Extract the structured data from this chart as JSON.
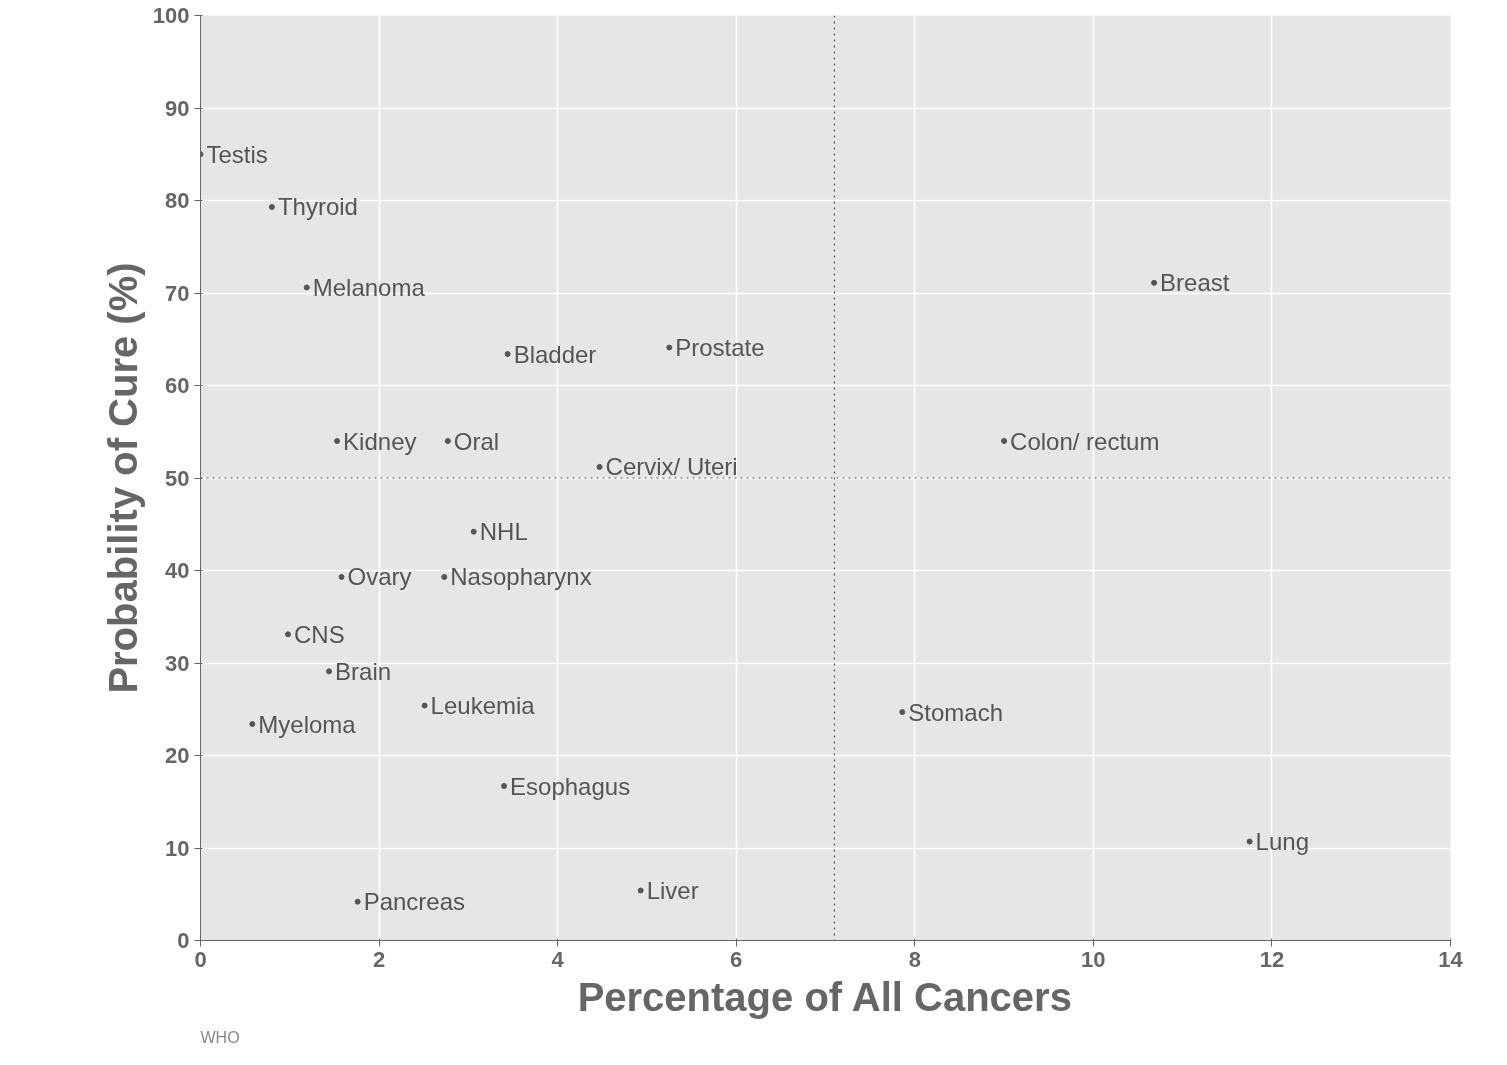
{
  "chart_data": {
    "type": "scatter",
    "marker": "circle",
    "color": "#555555",
    "xlabel": "Percentage of All Cancers",
    "ylabel": "Probability of Cure (%)",
    "xlim": [
      0,
      14
    ],
    "ylim": [
      0,
      100
    ],
    "xticks": [
      0,
      2,
      4,
      6,
      8,
      10,
      12,
      14
    ],
    "yticks": [
      0,
      10,
      20,
      30,
      40,
      50,
      60,
      70,
      80,
      90,
      100
    ],
    "grid": true,
    "ref_lines": [
      {
        "axis": "x",
        "value": 7.1,
        "line_style": "dotted",
        "color": "#555555"
      },
      {
        "axis": "y",
        "value": 50,
        "line_style": "dotted",
        "color": "#555555"
      }
    ],
    "annotations": [
      "WHO"
    ],
    "series": [
      {
        "name": "Testis",
        "x": [
          0
        ],
        "values": [
          85
        ]
      },
      {
        "name": "Thyroid",
        "x": [
          0.8
        ],
        "values": [
          79.3
        ]
      },
      {
        "name": "Melanoma",
        "x": [
          1.19
        ],
        "values": [
          70.6
        ]
      },
      {
        "name": "Breast",
        "x": [
          10.68
        ],
        "values": [
          71.1
        ]
      },
      {
        "name": "Bladder",
        "x": [
          3.44
        ],
        "values": [
          63.4
        ]
      },
      {
        "name": "Prostate",
        "x": [
          5.25
        ],
        "values": [
          64.1
        ]
      },
      {
        "name": "Kidney",
        "x": [
          1.53
        ],
        "values": [
          54
        ]
      },
      {
        "name": "Oral",
        "x": [
          2.77
        ],
        "values": [
          54
        ]
      },
      {
        "name": "Colon/ rectum",
        "x": [
          9.0
        ],
        "values": [
          54
        ]
      },
      {
        "name": "Cervix/ Uteri",
        "x": [
          4.47
        ],
        "values": [
          51.2
        ]
      },
      {
        "name": "NHL",
        "x": [
          3.06
        ],
        "values": [
          44.2
        ]
      },
      {
        "name": "Ovary",
        "x": [
          1.58
        ],
        "values": [
          39.3
        ]
      },
      {
        "name": "Nasopharynx",
        "x": [
          2.73
        ],
        "values": [
          39.3
        ]
      },
      {
        "name": "CNS",
        "x": [
          0.98
        ],
        "values": [
          33.1
        ]
      },
      {
        "name": "Brain",
        "x": [
          1.44
        ],
        "values": [
          29.1
        ]
      },
      {
        "name": "Leukemia",
        "x": [
          2.51
        ],
        "values": [
          25.4
        ]
      },
      {
        "name": "Myeloma",
        "x": [
          0.58
        ],
        "values": [
          23.4
        ]
      },
      {
        "name": "Stomach",
        "x": [
          7.86
        ],
        "values": [
          24.7
        ]
      },
      {
        "name": "Esophagus",
        "x": [
          3.4
        ],
        "values": [
          16.7
        ]
      },
      {
        "name": "Lung",
        "x": [
          11.75
        ],
        "values": [
          10.7
        ]
      },
      {
        "name": "Liver",
        "x": [
          4.93
        ],
        "values": [
          5.4
        ]
      },
      {
        "name": "Pancreas",
        "x": [
          1.76
        ],
        "values": [
          4.2
        ]
      }
    ]
  }
}
